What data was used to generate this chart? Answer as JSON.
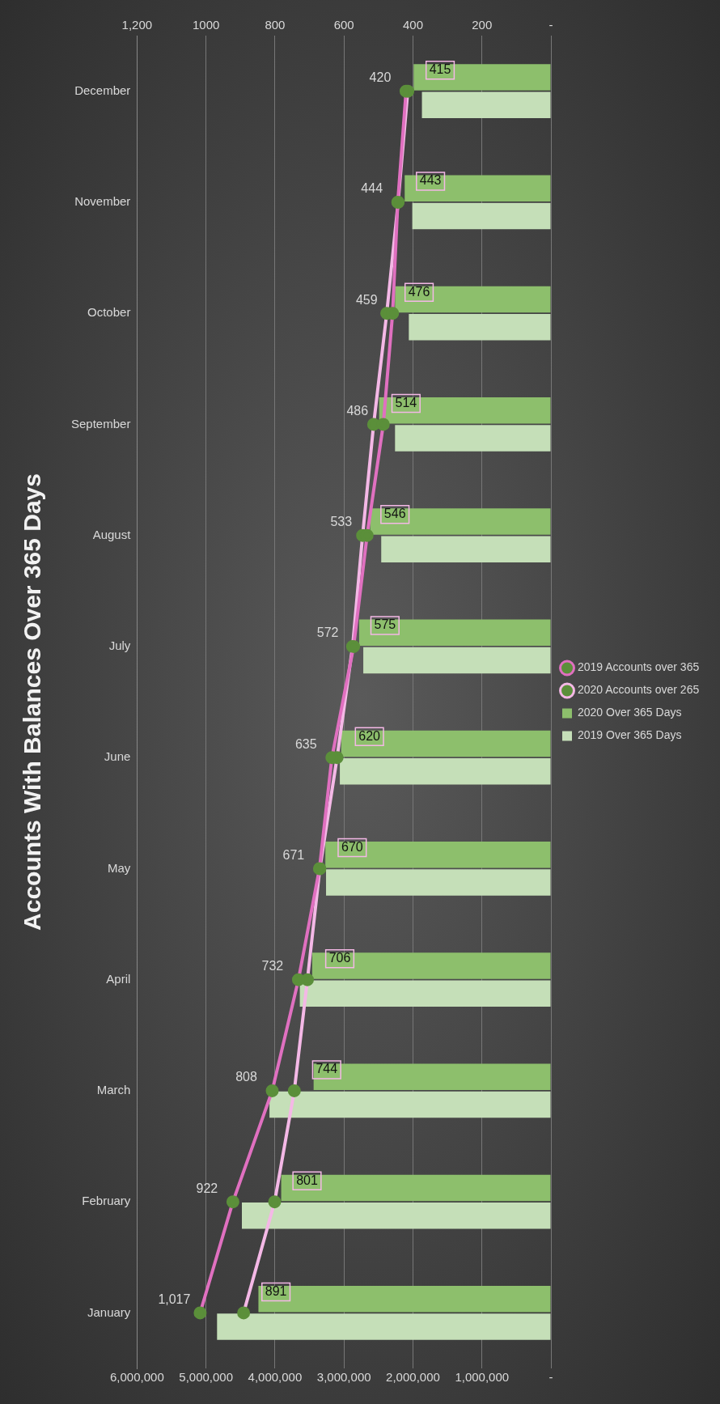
{
  "chart_data": {
    "type": "bar",
    "orientation": "horizontal",
    "title": "Accounts With Balances Over 365 Days",
    "categories": [
      "December",
      "November",
      "October",
      "September",
      "August",
      "July",
      "June",
      "May",
      "April",
      "March",
      "February",
      "January"
    ],
    "series": [
      {
        "name": "2020 Over 365 Days",
        "color": "#8dbf6c",
        "values": [
          1990000,
          2120000,
          2260000,
          2490000,
          2620000,
          2780000,
          3040000,
          3270000,
          3460000,
          3440000,
          3910000,
          4240000
        ]
      },
      {
        "name": "2019 Over 365 Days",
        "color": "#c5dfb8",
        "values": [
          1870000,
          2010000,
          2060000,
          2260000,
          2460000,
          2720000,
          3060000,
          3260000,
          3640000,
          4080000,
          4480000,
          4840000
        ]
      },
      {
        "name": "2019 Accounts over 365",
        "type": "line",
        "axis": "x2",
        "color": "#e070c0",
        "values": [
          420,
          444,
          459,
          486,
          533,
          572,
          635,
          671,
          732,
          808,
          922,
          1017
        ],
        "value_labels": [
          "420",
          "444",
          "459",
          "486",
          "533",
          "572",
          "635",
          "671",
          "732",
          "808",
          "922",
          "1,017"
        ]
      },
      {
        "name": "2020 Accounts over 265",
        "type": "line",
        "axis": "x2",
        "color": "#f4b8e6",
        "values": [
          415,
          443,
          476,
          514,
          546,
          575,
          620,
          670,
          706,
          744,
          801,
          891
        ],
        "value_labels": [
          "415",
          "443",
          "476",
          "514",
          "546",
          "575",
          "620",
          "670",
          "706",
          "744",
          "801",
          "891"
        ]
      }
    ],
    "xlim": [
      6000000,
      0
    ],
    "xticks": [
      {
        "value": 6000000,
        "label": "6,000,000"
      },
      {
        "value": 5000000,
        "label": "5,000,000"
      },
      {
        "value": 4000000,
        "label": "4,000,000"
      },
      {
        "value": 3000000,
        "label": "3,000,000"
      },
      {
        "value": 2000000,
        "label": "2,000,000"
      },
      {
        "value": 1000000,
        "label": "1,000,000"
      },
      {
        "value": 0,
        "label": "-"
      }
    ],
    "x2lim": [
      1200,
      0
    ],
    "x2ticks": [
      {
        "value": 1200,
        "label": "1,200"
      },
      1000,
      800,
      600,
      400,
      200,
      {
        "value": 0,
        "label": "-"
      }
    ],
    "grid": "x",
    "legend": "right",
    "marker": "circle"
  }
}
